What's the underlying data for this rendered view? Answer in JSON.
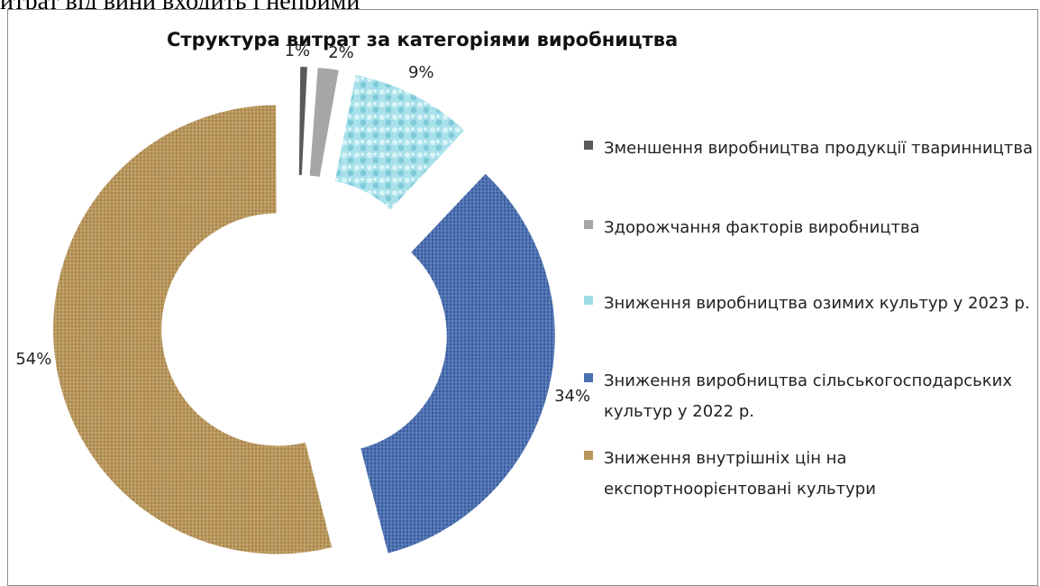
{
  "page": {
    "top_text": "итрат від вини входить і неприми"
  },
  "chart_data": {
    "type": "pie",
    "title": "Структура витрат за категоріями виробництва",
    "slices": [
      {
        "label": "Зменшення виробництва продукції тваринництва",
        "value": 1,
        "display": "1%",
        "color": "#595959"
      },
      {
        "label": "Здорожчання факторів виробництва",
        "value": 2,
        "display": "2%",
        "color": "#a6a6a6"
      },
      {
        "label": "Зниження виробництва озимих культур у 2023 р.",
        "value": 9,
        "display": "9%",
        "color": "#9fdde6"
      },
      {
        "label": "Зниження виробництва сільськогосподарських культур у 2022 р.",
        "value": 34,
        "display": "34%",
        "color": "#4a6fb0"
      },
      {
        "label": "Зниження внутрішніх цін на експортноорієнтовані культури",
        "value": 54,
        "display": "54%",
        "color": "#b8955a"
      }
    ],
    "legend_position": "right",
    "donut": true,
    "exploded": true
  }
}
